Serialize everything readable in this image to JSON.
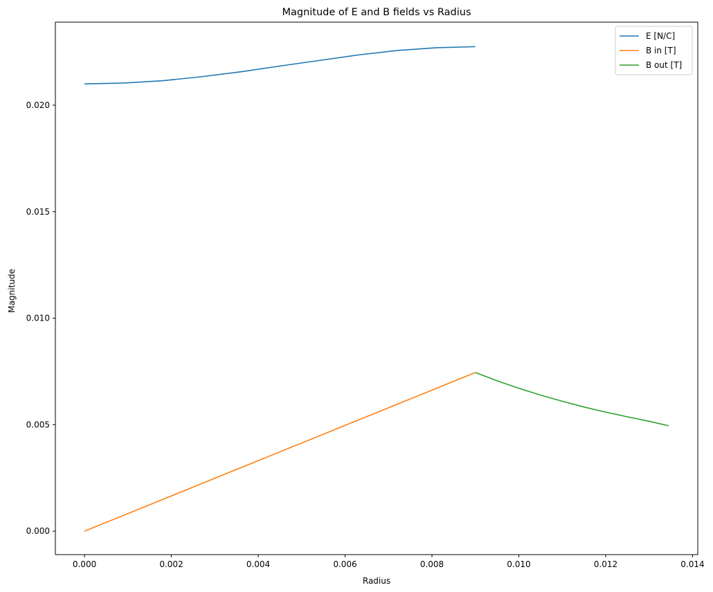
{
  "chart_data": {
    "type": "line",
    "title": "Magnitude of E and B fields vs Radius",
    "xlabel": "Radius",
    "ylabel": "Magnitude",
    "xlim": [
      -0.00067,
      0.01412
    ],
    "ylim": [
      -0.0011,
      0.0239
    ],
    "xticks": [
      0.0,
      0.002,
      0.004,
      0.006,
      0.008,
      0.01,
      0.012,
      0.014
    ],
    "xtick_labels": [
      "0.000",
      "0.002",
      "0.004",
      "0.006",
      "0.008",
      "0.010",
      "0.012",
      "0.014"
    ],
    "yticks": [
      0.0,
      0.005,
      0.01,
      0.015,
      0.02
    ],
    "ytick_labels": [
      "0.000",
      "0.005",
      "0.010",
      "0.015",
      "0.020"
    ],
    "grid": false,
    "legend_position": "top-right",
    "series": [
      {
        "name": "E [N/C]",
        "color": "#1f77b4",
        "x": [
          0.0,
          0.0009,
          0.0018,
          0.0027,
          0.0036,
          0.0045,
          0.0054,
          0.0063,
          0.0072,
          0.0081,
          0.009
        ],
        "y": [
          0.021,
          0.02104,
          0.02115,
          0.02134,
          0.02157,
          0.02184,
          0.0221,
          0.02236,
          0.02257,
          0.0227,
          0.02275
        ]
      },
      {
        "name": "B in [T]",
        "color": "#ff7f0e",
        "x": [
          0.0,
          0.009
        ],
        "y": [
          0.0,
          0.00745
        ]
      },
      {
        "name": "B out [T]",
        "color": "#2ca02c",
        "x": [
          0.009,
          0.0095,
          0.01,
          0.0105,
          0.011,
          0.0115,
          0.012,
          0.0125,
          0.013,
          0.01345
        ],
        "y": [
          0.00745,
          0.00706,
          0.00671,
          0.00639,
          0.0061,
          0.00583,
          0.00559,
          0.00537,
          0.00516,
          0.00495
        ]
      }
    ]
  }
}
